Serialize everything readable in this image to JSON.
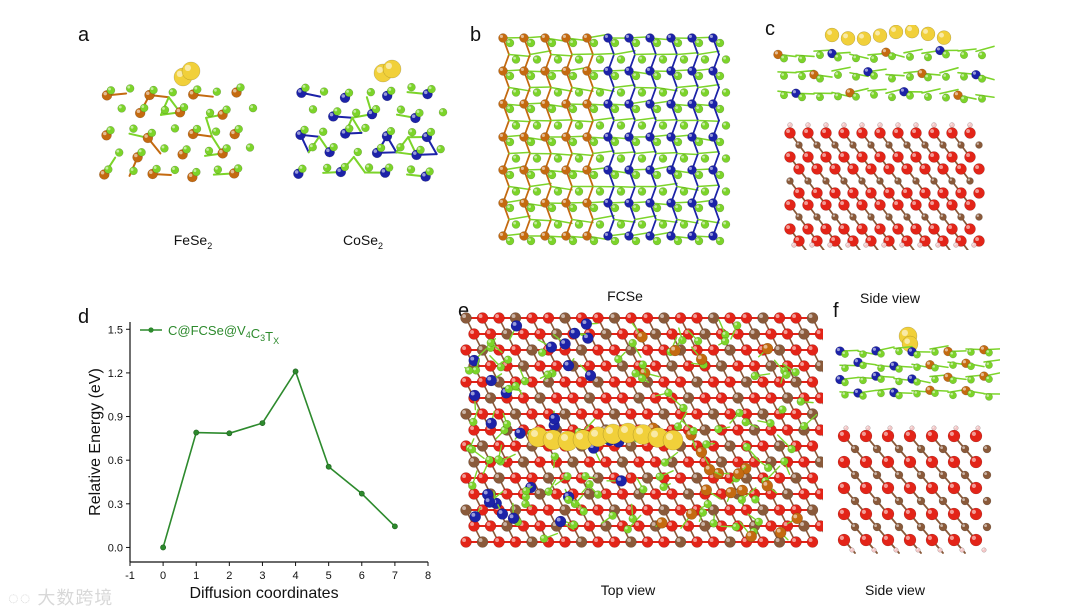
{
  "figure": {
    "panels": {
      "a": {
        "letter": "a",
        "captions": [
          "FeSe",
          "CoSe"
        ],
        "subscripts": [
          "2",
          "2"
        ]
      },
      "b": {
        "letter": "b",
        "caption": "FCSe"
      },
      "c": {
        "letter": "c",
        "caption": "Side view"
      },
      "d": {
        "letter": "d"
      },
      "e": {
        "letter": "e",
        "caption": "Top view"
      },
      "f": {
        "letter": "f",
        "caption": "Side view"
      }
    },
    "colors": {
      "se": "#7cd42a",
      "fe": "#c46a10",
      "co": "#1c22a8",
      "li": "#f1d03a",
      "v": "#e32418",
      "c": "#8a5a3a",
      "h": "#f3c7c7",
      "line": "#2d8a2d"
    }
  },
  "chart_data": {
    "type": "line",
    "title": "",
    "xlabel": "Diffusion coordinates",
    "ylabel": "Relative Energy (eV)",
    "xlim": [
      -1,
      8
    ],
    "ylim": [
      -0.1,
      1.55
    ],
    "xticks": [
      "-1",
      "0",
      "1",
      "2",
      "3",
      "4",
      "5",
      "6",
      "7",
      "8"
    ],
    "yticks": [
      "0.0",
      "0.3",
      "0.6",
      "0.9",
      "1.2",
      "1.5"
    ],
    "legend_position": "top-left",
    "legend": {
      "prefix": "C@FCSe@V",
      "s1": "4",
      "mid": "C",
      "s2": "3",
      "mid2": "T",
      "s3": "X"
    },
    "series": [
      {
        "name": "C@FCSe@V4C3TX",
        "x": [
          0,
          1,
          2,
          3,
          4,
          5,
          6,
          7
        ],
        "values": [
          0.0,
          0.79,
          0.785,
          0.855,
          1.21,
          0.555,
          0.37,
          0.145
        ]
      }
    ]
  },
  "watermark": {
    "text": "大数跨境"
  }
}
